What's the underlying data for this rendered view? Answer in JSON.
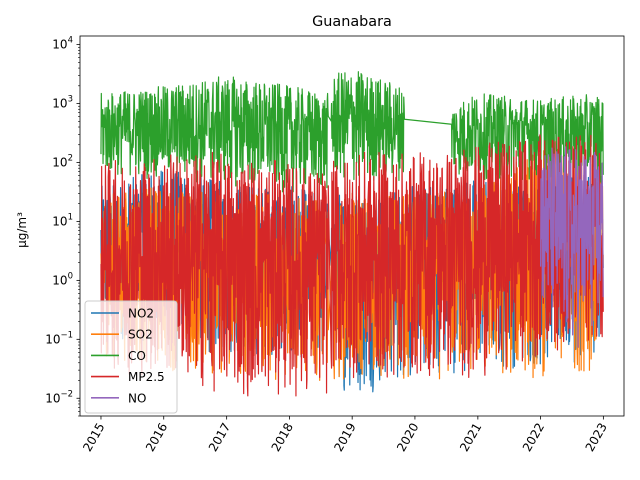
{
  "chart_data": {
    "type": "line",
    "title": "Guanabara",
    "xlabel": "",
    "ylabel": "µg/m³",
    "y_scale": "log",
    "ylim": [
      0.005,
      14000
    ],
    "xlim": [
      "2014-09-01",
      "2023-05-01"
    ],
    "y_ticks": [
      {
        "value": 0.01,
        "base": "10",
        "exp": "−2"
      },
      {
        "value": 0.1,
        "base": "10",
        "exp": "−1"
      },
      {
        "value": 1,
        "base": "10",
        "exp": "0"
      },
      {
        "value": 10,
        "base": "10",
        "exp": "1"
      },
      {
        "value": 100,
        "base": "10",
        "exp": "2"
      },
      {
        "value": 1000,
        "base": "10",
        "exp": "3"
      },
      {
        "value": 10000,
        "base": "10",
        "exp": "4"
      }
    ],
    "x_ticks": [
      {
        "value": "2015-01-01",
        "label": "2015"
      },
      {
        "value": "2016-01-01",
        "label": "2016"
      },
      {
        "value": "2017-01-01",
        "label": "2017"
      },
      {
        "value": "2018-01-01",
        "label": "2018"
      },
      {
        "value": "2019-01-01",
        "label": "2019"
      },
      {
        "value": "2020-01-01",
        "label": "2020"
      },
      {
        "value": "2021-01-01",
        "label": "2021"
      },
      {
        "value": "2022-01-01",
        "label": "2022"
      },
      {
        "value": "2023-01-01",
        "label": "2023"
      }
    ],
    "legend_position": "lower-left",
    "grid": false,
    "series": [
      {
        "name": "NO2",
        "color": "#1f77b4",
        "segments": [
          [
            "2015-01-01",
            "2018-08-15"
          ],
          [
            "2018-09-01",
            "2022-12-31"
          ]
        ],
        "envelope": [
          {
            "x": "2015-01-01",
            "low": 0.1,
            "high": 40
          },
          {
            "x": "2016-01-01",
            "low": 0.08,
            "high": 80
          },
          {
            "x": "2017-01-01",
            "low": 0.05,
            "high": 50
          },
          {
            "x": "2018-01-01",
            "low": 0.05,
            "high": 40
          },
          {
            "x": "2018-08-15",
            "low": 0.03,
            "high": 30
          },
          {
            "x": "2018-09-01",
            "low": 0.02,
            "high": 30
          },
          {
            "x": "2019-01-01",
            "low": 0.01,
            "high": 40
          },
          {
            "x": "2020-01-01",
            "low": 0.02,
            "high": 40
          },
          {
            "x": "2021-01-01",
            "low": 0.03,
            "high": 60
          },
          {
            "x": "2022-01-01",
            "low": 0.03,
            "high": 50
          },
          {
            "x": "2022-12-31",
            "low": 0.05,
            "high": 60
          }
        ]
      },
      {
        "name": "SO2",
        "color": "#ff7f0e",
        "segments": [
          [
            "2015-01-01",
            "2018-08-15"
          ],
          [
            "2018-09-01",
            "2022-12-31"
          ]
        ],
        "envelope": [
          {
            "x": "2015-01-01",
            "low": 0.05,
            "high": 30
          },
          {
            "x": "2016-01-01",
            "low": 0.03,
            "high": 40
          },
          {
            "x": "2017-01-01",
            "low": 0.02,
            "high": 30
          },
          {
            "x": "2018-01-01",
            "low": 0.02,
            "high": 30
          },
          {
            "x": "2018-08-15",
            "low": 0.02,
            "high": 20
          },
          {
            "x": "2018-09-01",
            "low": 0.02,
            "high": 20
          },
          {
            "x": "2019-01-01",
            "low": 0.02,
            "high": 30
          },
          {
            "x": "2020-01-01",
            "low": 0.02,
            "high": 30
          },
          {
            "x": "2021-01-01",
            "low": 0.02,
            "high": 40
          },
          {
            "x": "2022-01-01",
            "low": 0.02,
            "high": 200
          },
          {
            "x": "2022-12-31",
            "low": 0.03,
            "high": 100
          }
        ]
      },
      {
        "name": "CO",
        "color": "#2ca02c",
        "segments": [
          [
            "2015-01-01",
            "2018-08-15"
          ],
          [
            "2018-09-01",
            "2019-11-01"
          ],
          [
            "2020-08-01",
            "2022-12-31"
          ]
        ],
        "envelope": [
          {
            "x": "2015-01-01",
            "low": 60,
            "high": 1500
          },
          {
            "x": "2016-01-01",
            "low": 50,
            "high": 2000
          },
          {
            "x": "2017-01-01",
            "low": 40,
            "high": 3000
          },
          {
            "x": "2018-01-01",
            "low": 30,
            "high": 2000
          },
          {
            "x": "2018-08-15",
            "low": 30,
            "high": 1500
          },
          {
            "x": "2018-09-01",
            "low": 50,
            "high": 3000
          },
          {
            "x": "2019-01-01",
            "low": 40,
            "high": 4000
          },
          {
            "x": "2019-11-01",
            "low": 50,
            "high": 2000
          },
          {
            "x": "2020-08-01",
            "low": 60,
            "high": 1000
          },
          {
            "x": "2021-01-01",
            "low": 50,
            "high": 1500
          },
          {
            "x": "2022-01-01",
            "low": 50,
            "high": 1200
          },
          {
            "x": "2022-12-31",
            "low": 40,
            "high": 1500
          }
        ]
      },
      {
        "name": "MP2.5",
        "color": "#d62728",
        "segments": [
          [
            "2015-01-01",
            "2018-08-15"
          ],
          [
            "2018-09-01",
            "2022-12-31"
          ]
        ],
        "envelope": [
          {
            "x": "2015-01-01",
            "low": 0.03,
            "high": 100
          },
          {
            "x": "2016-01-01",
            "low": 0.02,
            "high": 150
          },
          {
            "x": "2017-01-01",
            "low": 0.01,
            "high": 150
          },
          {
            "x": "2018-01-01",
            "low": 0.01,
            "high": 100
          },
          {
            "x": "2018-08-15",
            "low": 0.01,
            "high": 80
          },
          {
            "x": "2018-09-01",
            "low": 0.02,
            "high": 100
          },
          {
            "x": "2019-01-01",
            "low": 0.02,
            "high": 150
          },
          {
            "x": "2020-01-01",
            "low": 0.02,
            "high": 150
          },
          {
            "x": "2021-01-01",
            "low": 0.02,
            "high": 200
          },
          {
            "x": "2022-01-01",
            "low": 0.05,
            "high": 300
          },
          {
            "x": "2022-12-31",
            "low": 0.1,
            "high": 300
          }
        ]
      },
      {
        "name": "NO",
        "color": "#9467bd",
        "segments": [
          [
            "2022-01-01",
            "2022-12-31"
          ]
        ],
        "envelope": [
          {
            "x": "2022-01-01",
            "low": 0.3,
            "high": 200
          },
          {
            "x": "2022-07-01",
            "low": 0.05,
            "high": 200
          },
          {
            "x": "2022-12-31",
            "low": 0.2,
            "high": 150
          }
        ]
      }
    ]
  }
}
